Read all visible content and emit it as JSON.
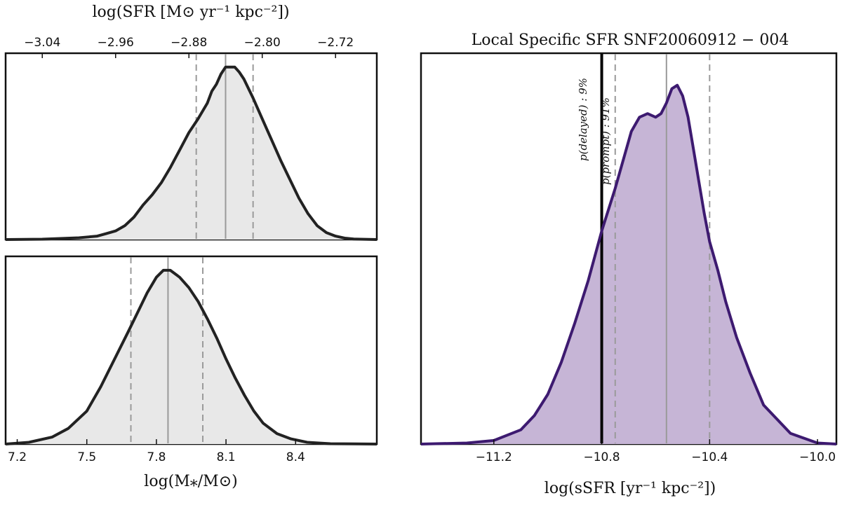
{
  "chart_data": [
    {
      "id": "sfr",
      "type": "area",
      "title": "",
      "xlabel": "log(SFR [M⊙ yr⁻¹ kpc⁻²])",
      "ylabel": "",
      "xlim": [
        -3.08,
        -2.675
      ],
      "ylim": [
        0,
        1.08
      ],
      "xticks": [
        -3.04,
        -2.96,
        -2.88,
        -2.8,
        -2.72
      ],
      "xtick_labels": [
        "−3.04",
        "−2.96",
        "−2.88",
        "−2.80",
        "−2.72"
      ],
      "axis_position": "top",
      "x": [
        -3.08,
        -3.04,
        -3.0,
        -2.98,
        -2.97,
        -2.96,
        -2.95,
        -2.94,
        -2.93,
        -2.92,
        -2.91,
        -2.9,
        -2.89,
        -2.88,
        -2.87,
        -2.86,
        -2.855,
        -2.85,
        -2.845,
        -2.84,
        -2.83,
        -2.825,
        -2.82,
        -2.81,
        -2.8,
        -2.79,
        -2.78,
        -2.77,
        -2.76,
        -2.75,
        -2.74,
        -2.73,
        -2.72,
        -2.71,
        -2.7,
        -2.675
      ],
      "y": [
        0,
        0.002,
        0.01,
        0.02,
        0.035,
        0.05,
        0.08,
        0.13,
        0.2,
        0.26,
        0.33,
        0.42,
        0.52,
        0.62,
        0.7,
        0.79,
        0.86,
        0.9,
        0.96,
        1.0,
        1.0,
        0.97,
        0.93,
        0.82,
        0.7,
        0.58,
        0.46,
        0.35,
        0.24,
        0.15,
        0.08,
        0.04,
        0.02,
        0.008,
        0.003,
        0
      ],
      "median": -2.84,
      "lower": -2.872,
      "upper": -2.81,
      "fill": "#e8e8e8",
      "line": "#222222"
    },
    {
      "id": "mass",
      "type": "area",
      "title": "",
      "xlabel": "log(M⁎/M⊙)",
      "ylabel": "",
      "xlim": [
        7.15,
        8.75
      ],
      "ylim": [
        0,
        1.08
      ],
      "xticks": [
        7.2,
        7.5,
        7.8,
        8.1,
        8.4
      ],
      "xtick_labels": [
        "7.2",
        "7.5",
        "7.8",
        "8.1",
        "8.4"
      ],
      "axis_position": "bottom",
      "x": [
        7.15,
        7.25,
        7.35,
        7.42,
        7.5,
        7.56,
        7.62,
        7.68,
        7.72,
        7.76,
        7.8,
        7.83,
        7.86,
        7.9,
        7.94,
        7.98,
        8.02,
        8.06,
        8.1,
        8.14,
        8.18,
        8.22,
        8.26,
        8.32,
        8.38,
        8.45,
        8.55,
        8.75
      ],
      "y": [
        0,
        0.01,
        0.04,
        0.09,
        0.19,
        0.33,
        0.49,
        0.65,
        0.76,
        0.87,
        0.96,
        1.0,
        1.0,
        0.96,
        0.9,
        0.82,
        0.72,
        0.61,
        0.49,
        0.38,
        0.28,
        0.19,
        0.12,
        0.06,
        0.03,
        0.01,
        0.002,
        0
      ],
      "median": 7.85,
      "lower": 7.69,
      "upper": 8.0,
      "fill": "#e8e8e8",
      "line": "#222222"
    },
    {
      "id": "ssfr",
      "type": "area",
      "title": "Local Specific SFR SNF20060912 − 004",
      "xlabel": "log(sSFR [yr⁻¹ kpc⁻²])",
      "ylabel": "",
      "xlim": [
        -11.47,
        -9.93
      ],
      "ylim": [
        0,
        1.1
      ],
      "xticks": [
        -11.2,
        -10.8,
        -10.4,
        -10.0
      ],
      "xtick_labels": [
        "−11.2",
        "−10.8",
        "−10.4",
        "−10.0"
      ],
      "axis_position": "bottom",
      "x": [
        -11.47,
        -11.3,
        -11.2,
        -11.1,
        -11.05,
        -11.0,
        -10.95,
        -10.9,
        -10.85,
        -10.8,
        -10.75,
        -10.72,
        -10.69,
        -10.66,
        -10.63,
        -10.6,
        -10.58,
        -10.56,
        -10.54,
        -10.52,
        -10.5,
        -10.48,
        -10.46,
        -10.44,
        -10.42,
        -10.4,
        -10.37,
        -10.34,
        -10.3,
        -10.25,
        -10.2,
        -10.1,
        -10.0,
        -9.93
      ],
      "y": [
        0,
        0.003,
        0.01,
        0.04,
        0.08,
        0.14,
        0.23,
        0.34,
        0.46,
        0.6,
        0.72,
        0.8,
        0.88,
        0.92,
        0.93,
        0.92,
        0.93,
        0.96,
        1.0,
        1.01,
        0.98,
        0.92,
        0.83,
        0.74,
        0.65,
        0.57,
        0.49,
        0.4,
        0.3,
        0.2,
        0.11,
        0.03,
        0.003,
        0
      ],
      "median": -10.56,
      "lower": -10.75,
      "upper": -10.4,
      "threshold": -10.8,
      "annotations": [
        "p(delayed) : 9%",
        "p(prompt) : 91%"
      ],
      "fill": "#c6b5d6",
      "line": "#3d1a70"
    }
  ]
}
